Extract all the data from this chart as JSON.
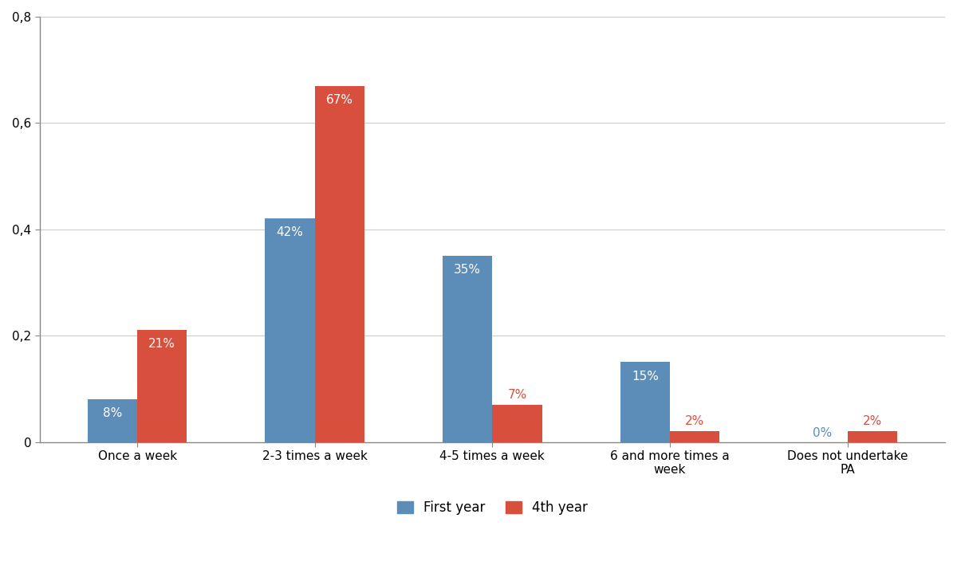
{
  "categories": [
    "Once a week",
    "2-3 times a week",
    "4-5 times a week",
    "6 and more times a\nweek",
    "Does not undertake\nPA"
  ],
  "first_year": [
    0.08,
    0.42,
    0.35,
    0.15,
    0.0
  ],
  "fourth_year": [
    0.21,
    0.67,
    0.07,
    0.02,
    0.02
  ],
  "first_year_labels": [
    "8%",
    "42%",
    "35%",
    "15%",
    "0%"
  ],
  "fourth_year_labels": [
    "21%",
    "67%",
    "7%",
    "2%",
    "2%"
  ],
  "first_year_color": "#5b8db8",
  "fourth_year_color": "#d94f3d",
  "ylim": [
    0,
    0.8
  ],
  "yticks": [
    0,
    0.2,
    0.4,
    0.6,
    0.8
  ],
  "ytick_labels": [
    "0",
    "0,2",
    "0,4",
    "0,6",
    "0,8"
  ],
  "legend_first": "First year",
  "legend_fourth": "4th year",
  "bar_width": 0.28,
  "background_color": "#ffffff",
  "grid_color": "#cccccc",
  "label_fontsize": 11,
  "tick_fontsize": 11,
  "spine_color": "#888888"
}
